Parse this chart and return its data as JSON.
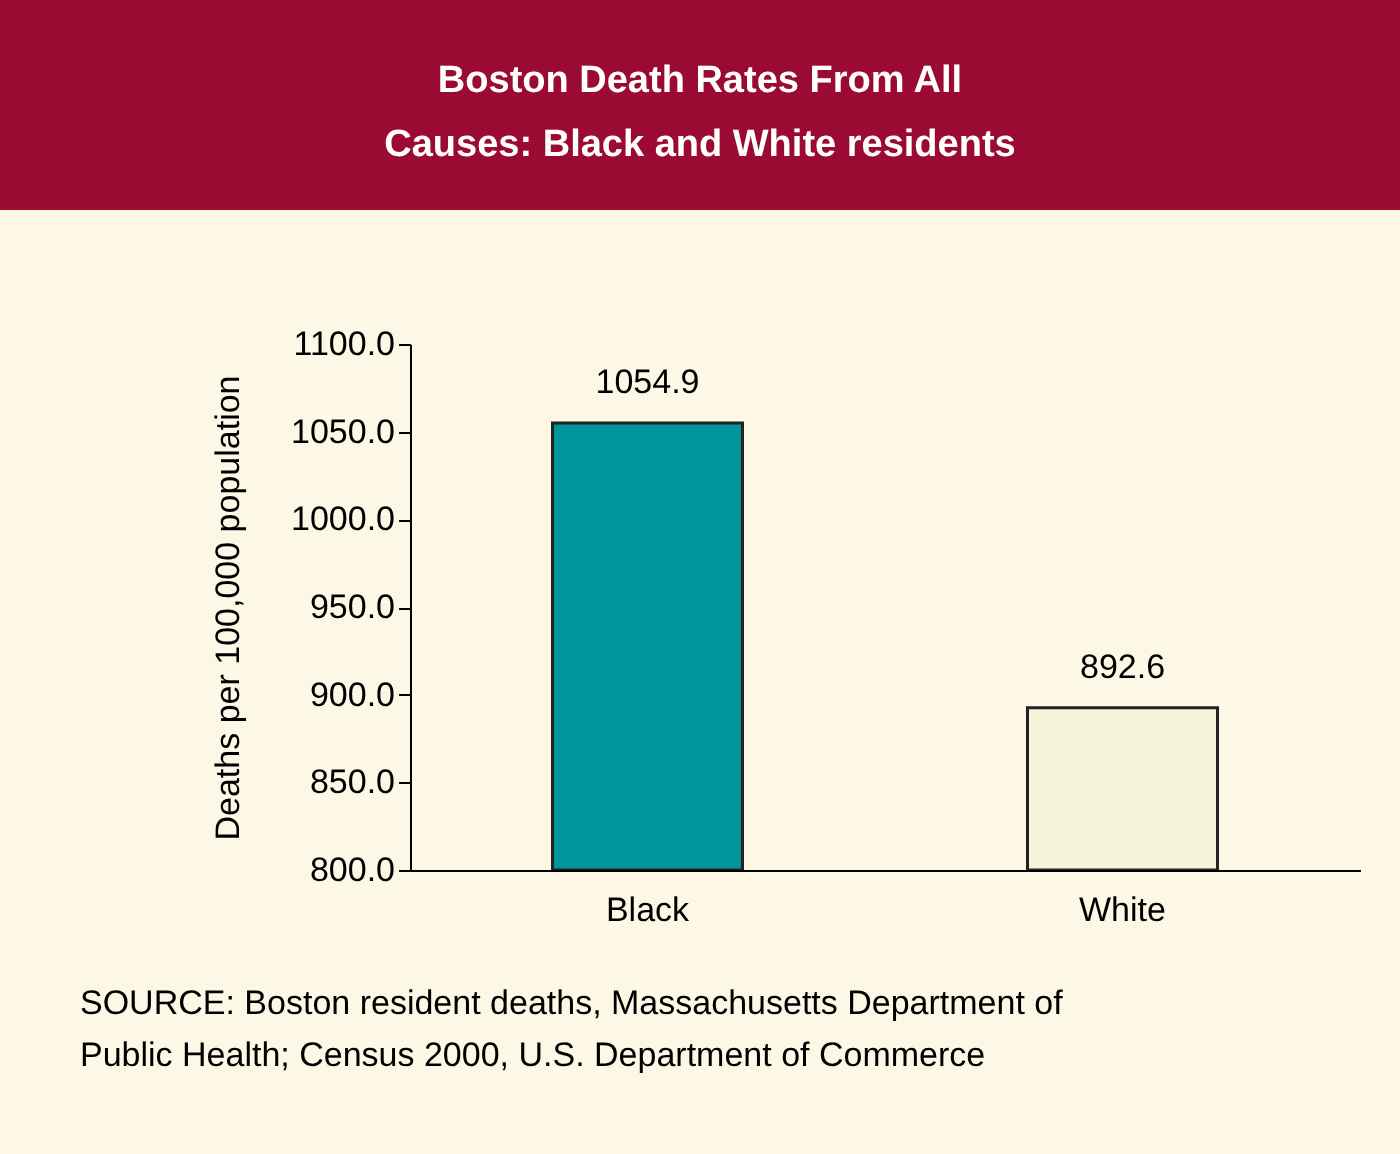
{
  "chart_data": {
    "type": "bar",
    "title": "Boston Death Rates From All Causes: Black and White residents",
    "ylabel": "Deaths per 100,000 population",
    "categories": [
      "Black",
      "White"
    ],
    "values": [
      1054.9,
      892.6
    ],
    "colors": [
      "#00959b",
      "#f4f4d8"
    ],
    "ylim": [
      800,
      1100
    ],
    "yticks": [
      {
        "value": 800,
        "label": "800.0"
      },
      {
        "value": 850,
        "label": "850.0"
      },
      {
        "value": 900,
        "label": "900.0"
      },
      {
        "value": 950,
        "label": "950.0"
      },
      {
        "value": 1000,
        "label": "1000.0"
      },
      {
        "value": 1050,
        "label": "1050.0"
      },
      {
        "value": 1100,
        "label": "1100.0"
      }
    ],
    "data_labels": true,
    "grid": false,
    "annotations": [
      "SOURCE:  Boston resident deaths, Massachusetts Department of Public Health; Census 2000, U.S. Department of Commerce"
    ]
  }
}
